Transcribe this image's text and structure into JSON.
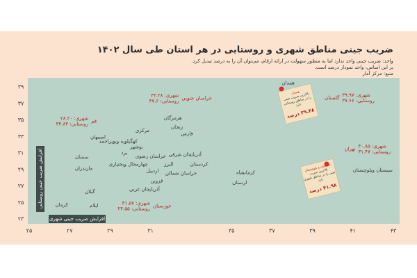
{
  "chart_data": {
    "type": "scatter",
    "title": "ضریب جینی مناطق شهری و روستایی در هر استان طی سال ۱۴۰۲",
    "subtitle": [
      "واحد: ضریب جینی واحد ندارد اما به منظور سهولت در ارائه ارقام، می‌توان آن را به درصد تبدیل کرد.",
      "بر این اساس، واحد نمودار درصد است.",
      "منبع: مرکز آمار"
    ],
    "x_label": "افزایش ضریب جینی شهری",
    "y_label": "افزایش ضریب جینی روستایی",
    "xlim": [
      25,
      43
    ],
    "ylim": [
      23,
      39
    ],
    "xticks": [
      {
        "value": 25,
        "label": "۲۵"
      },
      {
        "value": 27,
        "label": "۲۷"
      },
      {
        "value": 29,
        "label": "۲۹"
      },
      {
        "value": 31,
        "label": "۳۱"
      },
      {
        "value": 35,
        "label": "۳۵"
      },
      {
        "value": 37,
        "label": "۳۷"
      },
      {
        "value": 39,
        "label": "۳۹"
      },
      {
        "value": 41,
        "label": "۴۱"
      },
      {
        "value": 43,
        "label": "۴۳"
      }
    ],
    "yticks": [
      {
        "value": 23,
        "label": "۲۳"
      },
      {
        "value": 25,
        "label": "۲۵"
      },
      {
        "value": 27,
        "label": "۲۷"
      },
      {
        "value": 29,
        "label": "۲۹"
      },
      {
        "value": 31,
        "label": "۳۱"
      },
      {
        "value": 33,
        "label": "۳۳"
      },
      {
        "value": 35,
        "label": "۳۵"
      },
      {
        "value": 37,
        "label": "۳۷"
      },
      {
        "value": 39,
        "label": "۳۹"
      }
    ],
    "series": [
      {
        "color": "#3a3a3a",
        "labels": [
          "همدان",
          "هرمزگان",
          "زنجان",
          "مرکزی",
          "فارس",
          "کهگیلویه وبویراحمد",
          "بوشهر",
          "اصفهان",
          "یزد",
          "سمنان",
          "خراسان رضوی",
          "چهارمحال وبختیاری",
          "مازندران",
          "البرز",
          "آذربایجان شرقی",
          "کردستان",
          "اردبیل",
          "خراسان شمالی",
          "کرمانشاه",
          "قزوین",
          "لرستان",
          "آذربایجان غربی",
          "سیستان وبلوچستان",
          "گیلان",
          "کرمان",
          "ایلام"
        ],
        "x": [
          37.8,
          32.1,
          32.3,
          30.6,
          32.8,
          29.4,
          30.3,
          28.4,
          29.7,
          27.6,
          31.0,
          29.9,
          27.7,
          31.9,
          32.7,
          33.4,
          31.1,
          32.5,
          35.7,
          31.3,
          35.4,
          30.7,
          41.98,
          28.0,
          26.6,
          28.2
        ],
        "values": [
          39.48,
          35.2,
          34.1,
          33.7,
          33.3,
          32.4,
          31.7,
          32.9,
          31.0,
          30.5,
          30.6,
          29.6,
          29.1,
          29.6,
          30.8,
          29.6,
          28.8,
          28.5,
          28.6,
          27.6,
          27.4,
          26.6,
          28.9,
          26.3,
          24.7,
          24.6
        ]
      },
      {
        "color": "#b3261e",
        "labels": [
          "خراسان جنوبی",
          "قم",
          "گلستان",
          "تهران",
          "خوزستان"
        ],
        "x": [
          33.28,
          28.2,
          39.97,
          40.85,
          31.57
        ],
        "values": [
          37.6,
          34.83,
          37.66,
          31.47,
          24.55
        ],
        "value_labels": [
          [
            "شهری: ۳۳.۲۸",
            "روستایی: ۳۷.۶"
          ],
          [
            "شهری: ۲۸.۲۰",
            "روستایی: ۳۴.۸۳"
          ],
          [
            "شهری: ۳۹.۹۷",
            "روستایی: ۳۷.۶۶"
          ],
          [
            "شهری: ۴۰.۸۵",
            "روستایی: ۳۱.۴۷"
          ],
          [
            "شهری: ۳۱.۵۷",
            "روستایی: ۲۴.۵۵"
          ]
        ]
      }
    ],
    "notes": [
      {
        "lines": [
          "همدان",
          "بالاترین ضریب جینی",
          "را در مناطق روستایی",
          "دارد"
        ],
        "value": "۳۹.۴۸ درصد"
      },
      {
        "lines": [
          "سیستان و بلوچستان",
          "بالاترین ضریب",
          "جینی را در مناطق شهری",
          "دارد"
        ],
        "value": "۴۱.۹۸ درصد"
      }
    ],
    "grid": false
  }
}
